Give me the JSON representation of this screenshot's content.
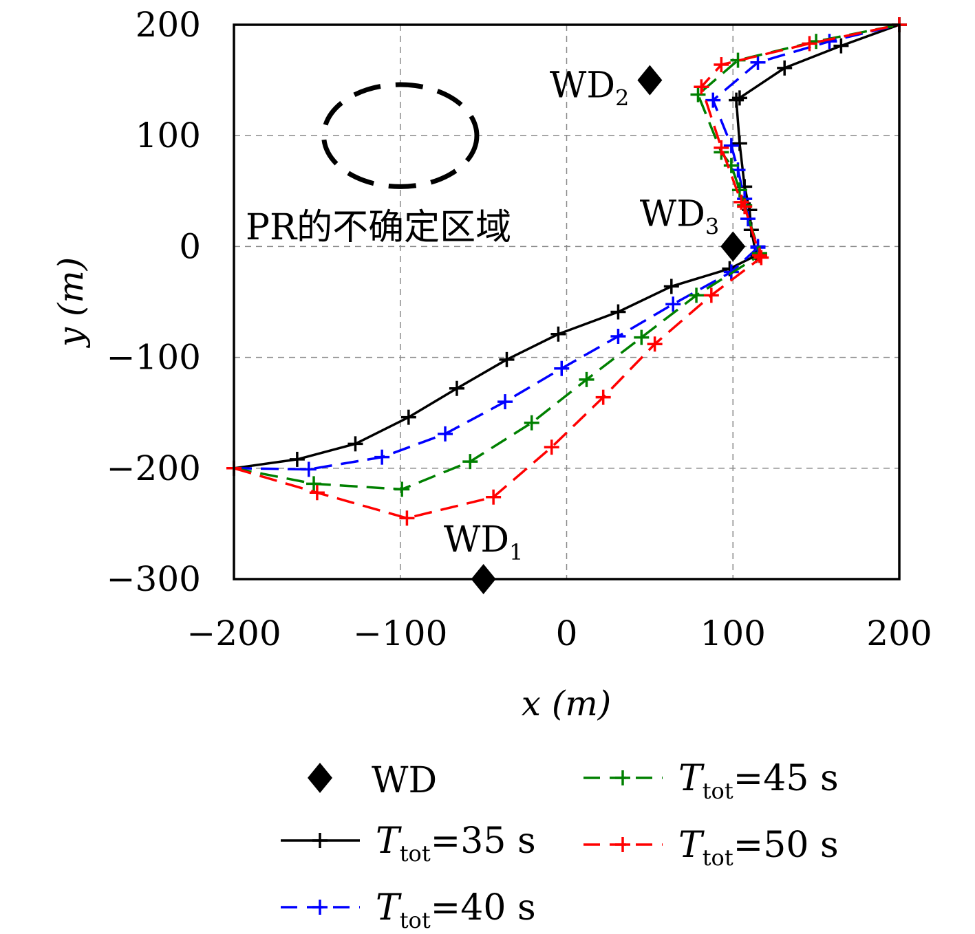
{
  "chart_data": {
    "type": "line",
    "xlabel": "x (m)",
    "ylabel": "y (m)",
    "xlim": [
      -200,
      200
    ],
    "ylim": [
      -300,
      200
    ],
    "xticks": [
      -200,
      -100,
      0,
      100,
      200
    ],
    "yticks": [
      -300,
      -200,
      -100,
      0,
      100,
      200
    ],
    "xtick_labels": [
      "−200",
      "−100",
      "0",
      "100",
      "200"
    ],
    "ytick_labels": [
      "−300",
      "−200",
      "−100",
      "0",
      "100",
      "200"
    ],
    "grid": true,
    "legend_position": "below",
    "series": [
      {
        "name": "T_tot=35 s",
        "color": "#000000",
        "dash": "solid",
        "x": [
          -200,
          -162,
          -127,
          -95,
          -66,
          -36,
          -5,
          31,
          63,
          98,
          114,
          111,
          110,
          107,
          104,
          102,
          104,
          131,
          165,
          200
        ],
        "y": [
          -200,
          -192,
          -178,
          -154,
          -128,
          -102,
          -79,
          -59,
          -36,
          -20,
          -8,
          15,
          33,
          54,
          93,
          132,
          134,
          161,
          181,
          200
        ]
      },
      {
        "name": "T_tot=40 s",
        "color": "#0000ff",
        "dash": "dashed",
        "x": [
          -200,
          -155,
          -111,
          -73,
          -37,
          -3,
          31,
          64,
          99,
          115,
          115,
          109,
          107,
          103,
          99,
          88,
          115,
          158,
          200
        ],
        "y": [
          -200,
          -201,
          -190,
          -169,
          -140,
          -110,
          -81,
          -52,
          -23,
          -1,
          0,
          25,
          43,
          69,
          91,
          132,
          166,
          185,
          200
        ]
      },
      {
        "name": "T_tot=45 s",
        "color": "#008000",
        "dash": "dashed",
        "x": [
          -200,
          -152,
          -99,
          -58,
          -21,
          12,
          45,
          78,
          116,
          116,
          107,
          104,
          99,
          93,
          79,
          103,
          150,
          200
        ],
        "y": [
          -200,
          -214,
          -219,
          -194,
          -159,
          -120,
          -82,
          -44,
          -8,
          -6,
          37,
          51,
          73,
          85,
          137,
          168,
          185,
          200
        ]
      },
      {
        "name": "T_tot=50 s",
        "color": "#ff0000",
        "dash": "dashed",
        "x": [
          -200,
          -150,
          -96,
          -44,
          -9,
          22,
          53,
          87,
          117,
          116,
          107,
          105,
          93,
          81,
          93,
          146,
          200
        ],
        "y": [
          -200,
          -222,
          -245,
          -226,
          -181,
          -136,
          -88,
          -44,
          -10,
          -8,
          36,
          40,
          89,
          144,
          164,
          183,
          200
        ]
      }
    ],
    "markers": {
      "legend_label": "WD",
      "points": [
        {
          "label": "WD",
          "sub": "1",
          "x": -50,
          "y": -300
        },
        {
          "label": "WD",
          "sub": "2",
          "x": 50,
          "y": 150
        },
        {
          "label": "WD",
          "sub": "3",
          "x": 100,
          "y": 0
        }
      ]
    },
    "region": {
      "label": "PR的不确定区域",
      "shape": "dashed ellipse",
      "center": [
        -100,
        100
      ],
      "radius_x": 46,
      "radius_y": 46
    }
  }
}
